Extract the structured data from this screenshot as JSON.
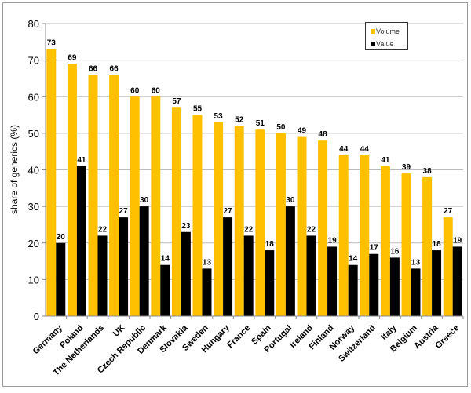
{
  "chart_data": {
    "type": "bar",
    "title": "",
    "xlabel": "",
    "ylabel": "share of generics (%)",
    "ylim": [
      0,
      80
    ],
    "yticks": [
      0,
      10,
      20,
      30,
      40,
      50,
      60,
      70,
      80
    ],
    "grid": true,
    "legend_placement": "top-right",
    "categories": [
      "Germany",
      "Poland",
      "The Netherlands",
      "UK",
      "Czech Republic",
      "Denmark",
      "Slovakia",
      "Sweden",
      "Hungary",
      "France",
      "Spain",
      "Portugal",
      "Ireland",
      "Finland",
      "Norway",
      "Switzerland",
      "Italy",
      "Belgium",
      "Austria",
      "Greece"
    ],
    "series": [
      {
        "name": "Volume",
        "color": "#FFC000",
        "values": [
          73,
          69,
          66,
          66,
          60,
          60,
          57,
          55,
          53,
          52,
          51,
          50,
          49,
          48,
          44,
          44,
          41,
          39,
          38,
          27
        ]
      },
      {
        "name": "Value",
        "color": "#000000",
        "values": [
          20,
          41,
          22,
          27,
          30,
          14,
          23,
          13,
          27,
          22,
          18,
          30,
          22,
          19,
          14,
          17,
          16,
          13,
          18,
          19
        ]
      }
    ]
  }
}
